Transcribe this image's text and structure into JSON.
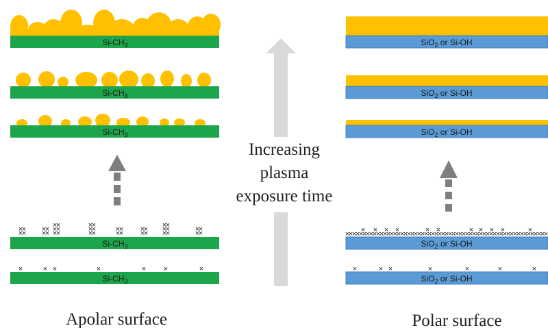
{
  "colors": {
    "green": "#1ca54b",
    "blue": "#5a9bd5",
    "gold": "#ffc000",
    "arrow_light": "#d9d9d9",
    "arrow_dark": "#7f7f7f",
    "text": "#222222"
  },
  "center_label": {
    "line1": "Increasing",
    "line2": "plasma",
    "line3": "exposure time"
  },
  "left": {
    "caption": "Apolar surface",
    "substrate_label": "Si-CH",
    "substrate_sub": "3"
  },
  "right": {
    "caption": "Polar surface",
    "substrate_label_pre": "SiO",
    "substrate_sub": "2",
    "substrate_label_post": " or Si-OH"
  },
  "icons": {
    "center_arrow": "up-arrow-icon",
    "left_arrow": "dashed-up-arrow-icon",
    "right_arrow": "dashed-up-arrow-icon"
  }
}
